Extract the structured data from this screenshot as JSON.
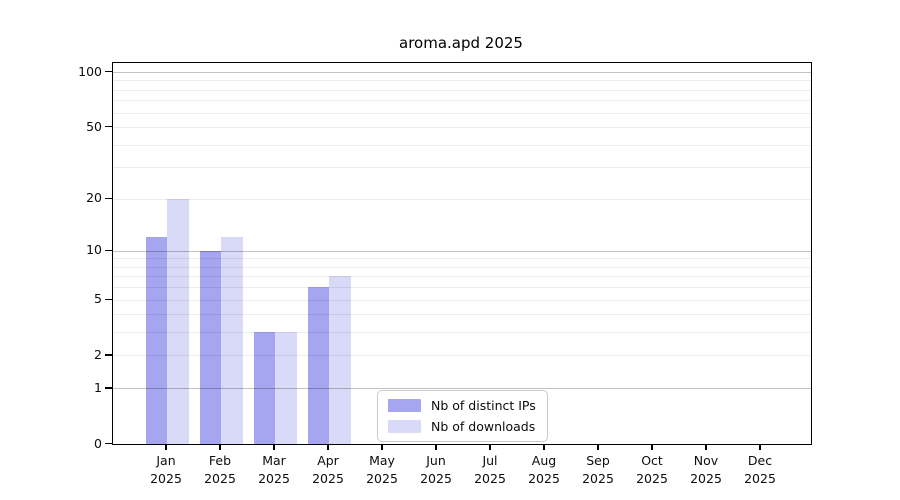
{
  "chart_data": {
    "type": "bar",
    "title": "aroma.apd 2025",
    "year": "2025",
    "categories": [
      "Jan",
      "Feb",
      "Mar",
      "Apr",
      "May",
      "Jun",
      "Jul",
      "Aug",
      "Sep",
      "Oct",
      "Nov",
      "Dec"
    ],
    "series": [
      {
        "name": "Nb of distinct IPs",
        "color": "#a5a5f0",
        "values": [
          12,
          10,
          3,
          6,
          0,
          0,
          0,
          0,
          0,
          0,
          0,
          0
        ]
      },
      {
        "name": "Nb of downloads",
        "color": "#d9d9f8",
        "values": [
          20,
          12,
          3,
          7,
          0,
          0,
          0,
          0,
          0,
          0,
          0,
          0
        ]
      }
    ],
    "y_axis": {
      "scale": "log10(value+1)",
      "ticks": [
        0,
        1,
        2,
        5,
        10,
        20,
        50,
        100
      ],
      "major_gridlines": [
        1,
        10,
        100
      ],
      "minor_gridlines": [
        2,
        3,
        4,
        5,
        6,
        7,
        8,
        9,
        20,
        30,
        40,
        50,
        60,
        70,
        80,
        90
      ],
      "range_max": 110
    },
    "legend_position": "inside-bottom-center",
    "grid": true
  }
}
